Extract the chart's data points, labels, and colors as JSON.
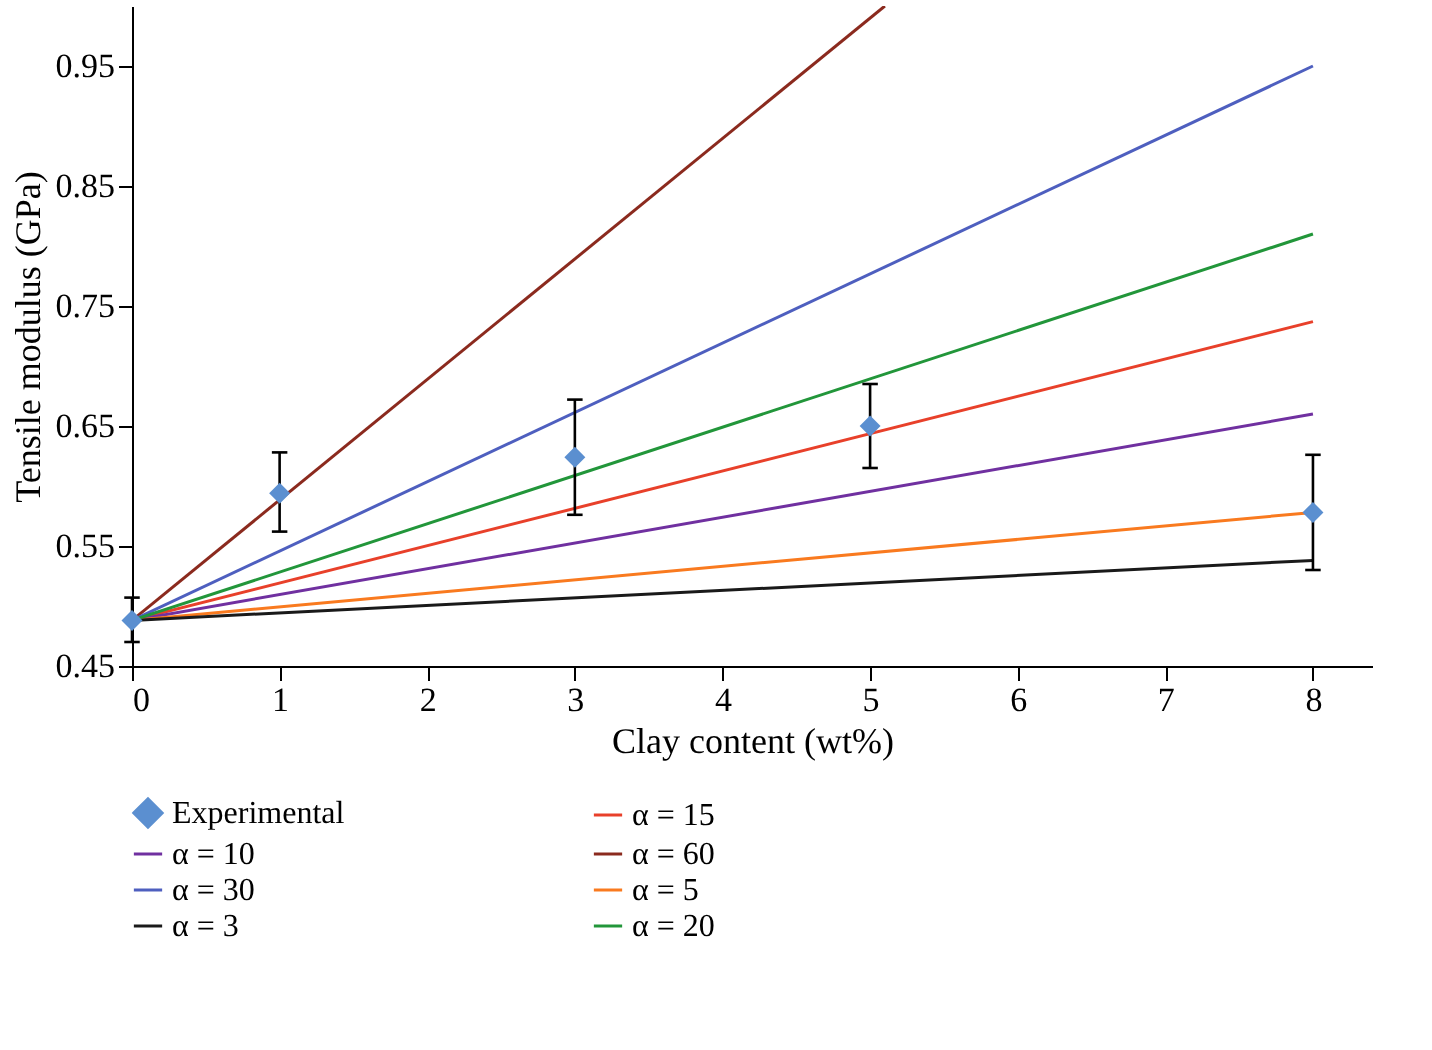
{
  "chart_data": {
    "type": "line",
    "xlabel": "Clay content (wt%)",
    "ylabel": "Tensile modulus (GPa)",
    "xlim": [
      0,
      8.4
    ],
    "xticks": [
      0,
      1,
      2,
      3,
      4,
      5,
      6,
      7,
      8
    ],
    "ylim": [
      0.45,
      1.0
    ],
    "yticks": [
      0.45,
      0.55,
      0.65,
      0.75,
      0.85,
      0.95
    ],
    "grid": false,
    "legend": "bottom",
    "line_style": "solid",
    "series": [
      {
        "name": "Experimental",
        "type": "scatter",
        "marker": "diamond",
        "color": "#5b8fd0",
        "x": [
          0,
          1,
          3,
          5,
          8
        ],
        "values": [
          0.488,
          0.594,
          0.624,
          0.65,
          0.578
        ],
        "errors": [
          [
            0.47,
            0.507
          ],
          [
            0.562,
            0.628
          ],
          [
            0.576,
            0.672
          ],
          [
            0.615,
            0.685
          ],
          [
            0.53,
            0.626
          ]
        ]
      },
      {
        "name": "α = 15",
        "color": "#e8402a",
        "x": [
          0,
          8
        ],
        "values": [
          0.488,
          0.737
        ]
      },
      {
        "name": "α = 10",
        "color": "#7030a0",
        "x": [
          0,
          8
        ],
        "values": [
          0.488,
          0.66
        ]
      },
      {
        "name": "α = 60",
        "color": "#8b2a1e",
        "x": [
          0,
          5.1
        ],
        "values": [
          0.488,
          1.0
        ]
      },
      {
        "name": "α = 30",
        "color": "#4e5fbf",
        "x": [
          0,
          8
        ],
        "values": [
          0.488,
          0.95
        ]
      },
      {
        "name": "α = 5",
        "color": "#f97a1f",
        "x": [
          0,
          8
        ],
        "values": [
          0.488,
          0.578
        ]
      },
      {
        "name": "α = 3",
        "color": "#1a1a1a",
        "x": [
          0,
          8
        ],
        "values": [
          0.488,
          0.538
        ]
      },
      {
        "name": "α = 20",
        "color": "#22963a",
        "x": [
          0,
          8
        ],
        "values": [
          0.488,
          0.81
        ]
      }
    ]
  }
}
